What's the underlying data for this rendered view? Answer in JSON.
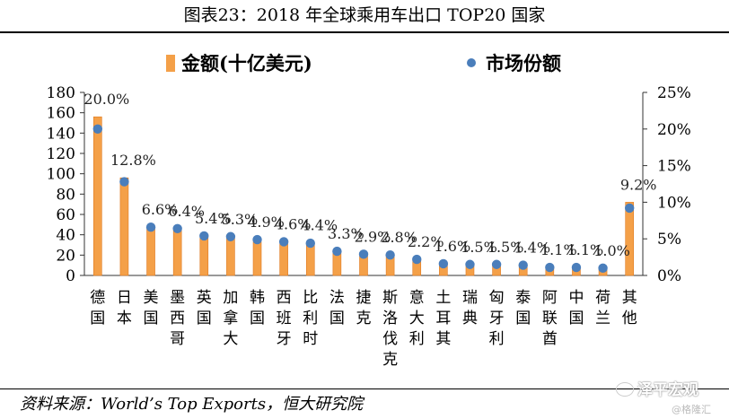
{
  "title": "图表23：2018 年全球乘用车出口 TOP20 国家",
  "source": "资料来源：World’s Top Exports，恒大研究院",
  "watermark": "泽平宏观",
  "watermark_sub": "@格隆汇",
  "colors": {
    "bar": "#F4A048",
    "bar_edge": "#E07A20",
    "dot": "#4A7EBB"
  },
  "chart_data": {
    "type": "bar",
    "categories": [
      "德国",
      "日本",
      "美国",
      "墨西哥",
      "英国",
      "加拿大",
      "韩国",
      "西班牙",
      "比利时",
      "法国",
      "捷克",
      "斯洛伐克",
      "意大利",
      "土耳其",
      "瑞典",
      "匈牙利",
      "泰国",
      "阿联酋",
      "中国",
      "荷兰",
      "其他"
    ],
    "series": [
      {
        "name": "金额(十亿美元)",
        "type": "bar",
        "axis": "left",
        "values": [
          156,
          96,
          46,
          45,
          38,
          37,
          33,
          31,
          32,
          24,
          20,
          20,
          15,
          11,
          10,
          10,
          10,
          8,
          8,
          6,
          72
        ]
      },
      {
        "name": "市场份额",
        "type": "scatter",
        "axis": "right",
        "values": [
          20.0,
          12.8,
          6.6,
          6.4,
          5.4,
          5.3,
          4.9,
          4.6,
          4.4,
          3.3,
          2.9,
          2.8,
          2.2,
          1.6,
          1.5,
          1.5,
          1.4,
          1.1,
          1.1,
          1.0,
          9.2
        ],
        "labels": [
          "20.0%",
          "12.8%",
          "6.6%",
          "6.4%",
          "5.4%",
          "5.3%",
          "4.9%",
          "4.6%",
          "4.4%",
          "3.3%",
          "2.9%",
          "2.8%",
          "2.2%",
          "1.6%",
          "1.5%",
          "1.5%",
          "1.4%",
          "1.1%",
          "1.1%",
          "1.0%",
          "9.2%"
        ]
      }
    ],
    "y_left": {
      "ylim": [
        0,
        180
      ],
      "ticks": [
        "0",
        "20",
        "40",
        "60",
        "80",
        "100",
        "120",
        "140",
        "160",
        "180"
      ]
    },
    "y_right": {
      "ylim": [
        0,
        25
      ],
      "ticks": [
        "0%",
        "5%",
        "10%",
        "15%",
        "20%",
        "25%"
      ]
    },
    "legend_position": "top",
    "grid": false
  }
}
